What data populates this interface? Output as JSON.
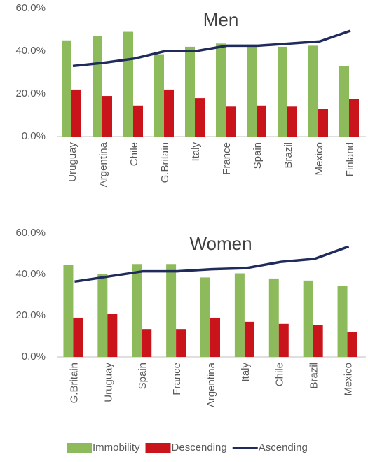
{
  "chart_data": [
    {
      "type": "bar-line",
      "title": "Men",
      "categories": [
        "Uruguay",
        "Argentina",
        "Chile",
        "G.Britain",
        "Italy",
        "France",
        "Spain",
        "Brazil",
        "Mexico",
        "Finland"
      ],
      "series": [
        {
          "name": "Immobility",
          "color": "#8dbb5c",
          "type": "bar",
          "values": [
            45,
            47,
            49,
            38.5,
            42,
            43.5,
            42.5,
            42,
            42.5,
            33
          ]
        },
        {
          "name": "Descending",
          "color": "#c9141c",
          "type": "bar",
          "values": [
            22,
            19,
            14.5,
            22,
            18,
            14,
            14.5,
            14,
            13,
            17.5
          ]
        },
        {
          "name": "Ascending",
          "color": "#1f2b5b",
          "type": "line",
          "values": [
            33,
            34.5,
            36.5,
            40,
            40,
            42.5,
            42.5,
            43.5,
            44.5,
            49.5
          ]
        }
      ],
      "ylim": [
        0,
        60
      ],
      "yticks": [
        {
          "value": 0,
          "label": "0.0%"
        },
        {
          "value": 20,
          "label": "20.0%"
        },
        {
          "value": 40,
          "label": "40.0%"
        },
        {
          "value": 60,
          "label": "60.0%"
        }
      ],
      "legend": "bottom"
    },
    {
      "type": "bar-line",
      "title": "Women",
      "categories": [
        "G.Britain",
        "Uruguay",
        "Spain",
        "France",
        "Argentina",
        "Italy",
        "Chile",
        "Brazil",
        "Mexico"
      ],
      "series": [
        {
          "color": "#8dbb5c",
          "type": "bar",
          "values": [
            44.5,
            40,
            45,
            45,
            38.5,
            40.5,
            38,
            37,
            34.5
          ]
        },
        {
          "color": "#c9141c",
          "type": "bar",
          "values": [
            19,
            21,
            13.5,
            13.5,
            19,
            17,
            16,
            15.5,
            12
          ]
        },
        {
          "color": "#1f2b5b",
          "type": "line",
          "values": [
            36.5,
            39,
            41.5,
            41.5,
            42.5,
            43,
            46,
            47.5,
            53.5
          ]
        }
      ],
      "ylim": [
        0,
        60
      ],
      "yticks": [
        {
          "value": 0,
          "label": "0.0%"
        },
        {
          "value": 20,
          "label": "20.0%"
        },
        {
          "value": 40,
          "label": "40.0%"
        },
        {
          "value": 60,
          "label": "60.0%"
        }
      ]
    }
  ]
}
